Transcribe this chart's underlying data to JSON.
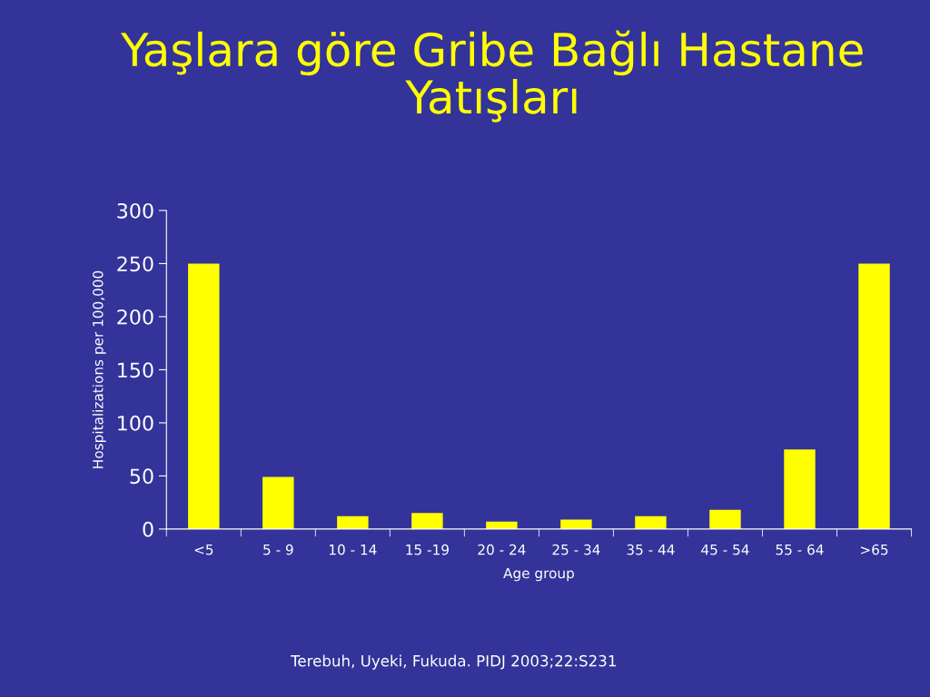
{
  "chart_data": {
    "type": "bar",
    "title": "Yaşlara göre Gribe Bağlı Hastane\nYatışları",
    "categories": [
      "<5",
      "5 - 9",
      "10 - 14",
      "15 -19",
      "20 - 24",
      "25 - 34",
      "35 - 44",
      "45 - 54",
      "55 - 64",
      ">65"
    ],
    "values": [
      250,
      49,
      12,
      15,
      7,
      9,
      12,
      18,
      75,
      250
    ],
    "color": "#ffff00",
    "xlabel": "Age group",
    "ylabel": "Hospitalizations per 100,000",
    "ylim": [
      0,
      300
    ],
    "yticks": [
      0,
      50,
      100,
      150,
      200,
      250,
      300
    ],
    "grid": false,
    "legend": false,
    "annotations": [
      "Terebuh, Uyeki, Fukuda. PIDJ 2003;22:S231"
    ]
  }
}
